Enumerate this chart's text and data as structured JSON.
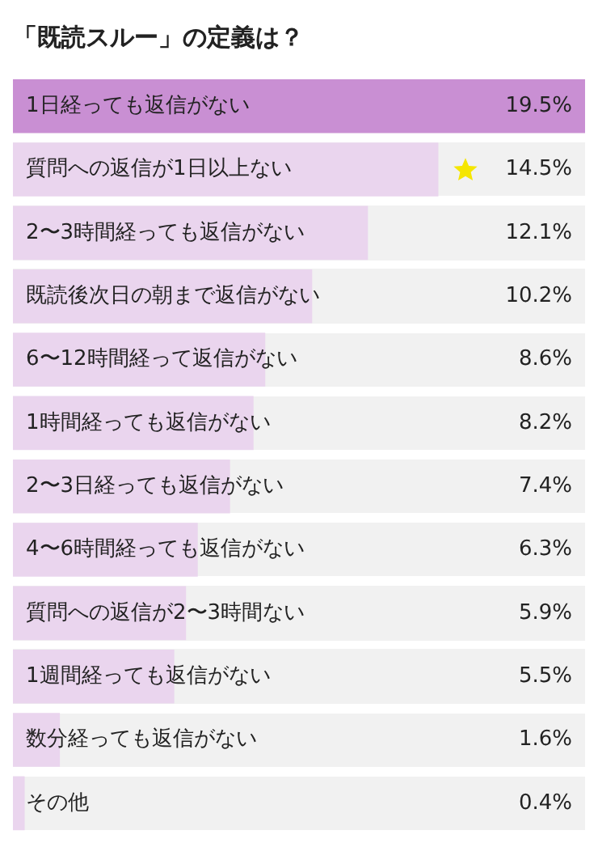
{
  "chart_data": {
    "type": "bar",
    "orientation": "horizontal",
    "title": "「既読スルー」の定義は？",
    "categories": [
      "1日経っても返信がない",
      "質問への返信が1日以上ない",
      "2〜3時間経っても返信がない",
      "既読後次日の朝まで返信がない",
      "6〜12時間経って返信がない",
      "1時間経っても返信がない",
      "2〜3日経っても返信がない",
      "4〜6時間経っても返信がない",
      "質問への返信が2〜3時間ない",
      "1週間経っても返信がない",
      "数分経っても返信がない",
      "その他"
    ],
    "values": [
      19.5,
      14.5,
      12.1,
      10.2,
      8.6,
      8.2,
      7.4,
      6.3,
      5.9,
      5.5,
      1.6,
      0.4
    ],
    "value_labels": [
      "19.5%",
      "14.5%",
      "12.1%",
      "10.2%",
      "8.6%",
      "8.2%",
      "7.4%",
      "6.3%",
      "5.9%",
      "5.5%",
      "1.6%",
      "0.4%"
    ],
    "colors": [
      "#c98fd3",
      "#ead5ee",
      "#ead5ee",
      "#ead5ee",
      "#ead5ee",
      "#ead5ee",
      "#ead5ee",
      "#ead5ee",
      "#ead5ee",
      "#ead5ee",
      "#ead5ee",
      "#ead5ee"
    ],
    "xlim": [
      0,
      19.5
    ],
    "tick_labels": false
  }
}
